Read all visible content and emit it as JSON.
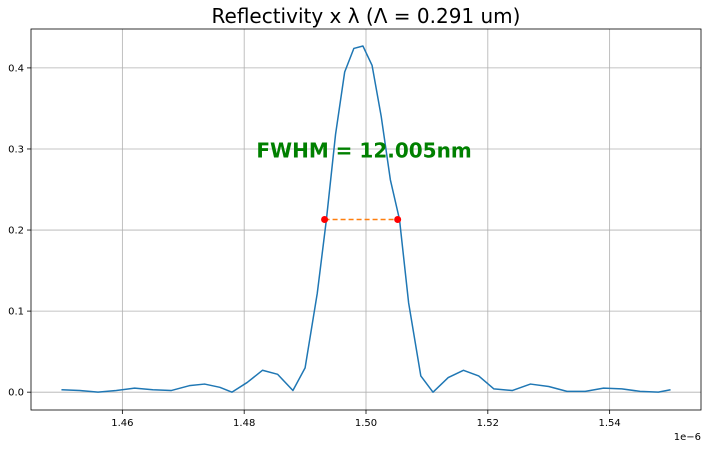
{
  "chart_data": {
    "type": "line",
    "title": "Reflectivity x λ (Λ = 0.291 um)",
    "xlabel": "",
    "ylabel": "",
    "x_offset_label": "1e−6",
    "xlim": [
      1.445,
      1.555
    ],
    "ylim": [
      -0.022,
      0.448
    ],
    "x_ticks": [
      1.46,
      1.48,
      1.5,
      1.52,
      1.54
    ],
    "x_tick_labels": [
      "1.46",
      "1.48",
      "1.50",
      "1.52",
      "1.54"
    ],
    "y_ticks": [
      0.0,
      0.1,
      0.2,
      0.3,
      0.4
    ],
    "y_tick_labels": [
      "0.0",
      "0.1",
      "0.2",
      "0.3",
      "0.4"
    ],
    "grid": true,
    "annotation": {
      "text": "FWHM = 12.005nm",
      "color": "#008000",
      "x": 1.482,
      "y": 0.298
    },
    "series": [
      {
        "color": "#1f77b4",
        "x": [
          1.45,
          1.453,
          1.456,
          1.459,
          1.462,
          1.465,
          1.468,
          1.471,
          1.4735,
          1.476,
          1.478,
          1.4805,
          1.483,
          1.4855,
          1.488,
          1.49,
          1.492,
          1.4935,
          1.495,
          1.4965,
          1.498,
          1.4995,
          1.501,
          1.5025,
          1.504,
          1.5055,
          1.507,
          1.509,
          1.511,
          1.5135,
          1.516,
          1.5185,
          1.521,
          1.524,
          1.527,
          1.53,
          1.533,
          1.536,
          1.539,
          1.542,
          1.545,
          1.548,
          1.55
        ],
        "y": [
          0.003,
          0.002,
          0.0,
          0.002,
          0.005,
          0.003,
          0.002,
          0.008,
          0.01,
          0.006,
          0.0,
          0.012,
          0.027,
          0.022,
          0.002,
          0.03,
          0.122,
          0.213,
          0.318,
          0.395,
          0.424,
          0.427,
          0.403,
          0.34,
          0.262,
          0.213,
          0.11,
          0.02,
          0.0,
          0.018,
          0.027,
          0.02,
          0.004,
          0.002,
          0.01,
          0.007,
          0.001,
          0.001,
          0.005,
          0.004,
          0.001,
          0.0,
          0.003
        ]
      },
      {
        "color": "#ff7f0e",
        "style": "dashed",
        "x": [
          1.4932,
          1.5052
        ],
        "y": [
          0.213,
          0.213
        ]
      }
    ],
    "markers": {
      "color": "#ff0000",
      "points": [
        [
          1.4932,
          0.213
        ],
        [
          1.5052,
          0.213
        ]
      ]
    }
  }
}
